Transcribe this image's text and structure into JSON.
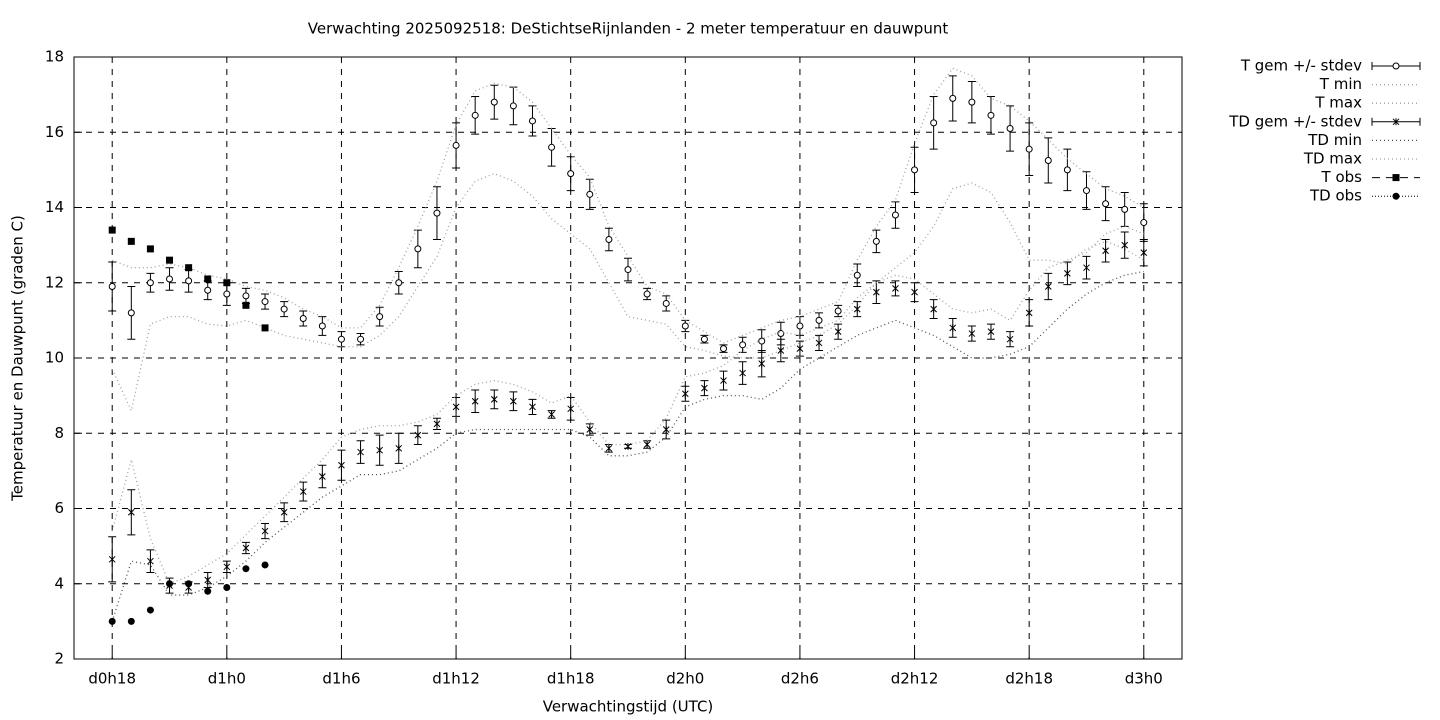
{
  "chart_data": {
    "type": "errorbar",
    "title": "Verwachting 2025092518: DeStichtseRijnlanden - 2 meter temperatuur en dauwpunt",
    "x_label": "Verwachtingstijd (UTC)",
    "y_label": "Temperatuur en Dauwpunt (graden C)",
    "xlim": [
      -2,
      56
    ],
    "ylim": [
      2,
      18
    ],
    "xticks": [
      {
        "value": 0,
        "label": "d0h18"
      },
      {
        "value": 6,
        "label": "d1h0"
      },
      {
        "value": 12,
        "label": "d1h6"
      },
      {
        "value": 18,
        "label": "d1h12"
      },
      {
        "value": 24,
        "label": "d1h18"
      },
      {
        "value": 30,
        "label": "d2h0"
      },
      {
        "value": 36,
        "label": "d2h6"
      },
      {
        "value": 42,
        "label": "d2h12"
      },
      {
        "value": 48,
        "label": "d2h18"
      },
      {
        "value": 54,
        "label": "d3h0"
      }
    ],
    "yticks": [
      2,
      4,
      6,
      8,
      10,
      12,
      14,
      16,
      18
    ],
    "grid": true,
    "legend": "outside-right",
    "x": [
      0,
      1,
      2,
      3,
      4,
      5,
      6,
      7,
      8,
      9,
      10,
      11,
      12,
      13,
      14,
      15,
      16,
      17,
      18,
      19,
      20,
      21,
      22,
      23,
      24,
      25,
      26,
      27,
      28,
      29,
      30,
      31,
      32,
      33,
      34,
      35,
      36,
      37,
      38,
      39,
      40,
      41,
      42,
      43,
      44,
      45,
      46,
      47,
      48,
      49,
      50,
      51,
      52,
      53,
      54
    ],
    "series": [
      {
        "name": "T gem +/- stdev",
        "style": "errorbar-circle",
        "color": "#000000",
        "values": [
          11.9,
          11.2,
          12.0,
          12.1,
          12.05,
          11.8,
          11.7,
          11.65,
          11.5,
          11.3,
          11.05,
          10.85,
          10.5,
          10.5,
          11.1,
          12.0,
          12.9,
          13.85,
          15.65,
          16.45,
          16.8,
          16.7,
          16.3,
          15.6,
          14.9,
          14.35,
          13.15,
          12.35,
          11.7,
          11.45,
          10.85,
          10.5,
          10.25,
          10.35,
          10.45,
          10.65,
          10.85,
          11.0,
          11.25,
          12.2,
          13.1,
          13.8,
          15.0,
          16.25,
          16.9,
          16.8,
          16.45,
          16.1,
          15.55,
          15.25,
          15.0,
          14.45,
          14.1,
          13.95,
          13.6
        ],
        "errors": [
          0.65,
          0.7,
          0.25,
          0.3,
          0.3,
          0.25,
          0.3,
          0.2,
          0.2,
          0.2,
          0.2,
          0.25,
          0.2,
          0.15,
          0.25,
          0.3,
          0.5,
          0.7,
          0.6,
          0.5,
          0.45,
          0.5,
          0.4,
          0.5,
          0.45,
          0.4,
          0.3,
          0.3,
          0.15,
          0.2,
          0.15,
          0.1,
          0.1,
          0.2,
          0.3,
          0.3,
          0.25,
          0.2,
          0.15,
          0.3,
          0.3,
          0.35,
          0.6,
          0.7,
          0.6,
          0.55,
          0.5,
          0.6,
          0.7,
          0.6,
          0.55,
          0.5,
          0.45,
          0.45,
          0.5
        ]
      },
      {
        "name": "T min",
        "style": "line-dotted",
        "color": "#a0a0a0",
        "values": [
          9.7,
          8.6,
          10.9,
          11.1,
          11.1,
          10.9,
          10.85,
          11.0,
          10.8,
          10.6,
          10.5,
          10.4,
          10.3,
          10.3,
          10.6,
          11.1,
          11.9,
          12.7,
          14.0,
          14.7,
          14.9,
          14.7,
          14.3,
          13.7,
          13.3,
          12.9,
          12.0,
          11.1,
          11.0,
          10.9,
          10.3,
          10.2,
          10.05,
          10.0,
          10.0,
          10.2,
          10.4,
          10.6,
          10.9,
          11.4,
          12.0,
          12.4,
          12.8,
          13.5,
          14.5,
          14.65,
          14.4,
          13.6,
          12.6,
          12.6,
          12.5,
          12.9,
          13.1,
          12.9,
          12.6
        ]
      },
      {
        "name": "T max",
        "style": "line-dotted",
        "color": "#a0a0a0",
        "values": [
          12.6,
          12.4,
          12.4,
          12.5,
          12.4,
          12.2,
          12.1,
          11.9,
          11.8,
          11.6,
          11.3,
          11.1,
          10.8,
          10.8,
          11.4,
          12.4,
          13.5,
          14.7,
          16.2,
          17.1,
          17.3,
          17.2,
          16.8,
          16.1,
          15.4,
          14.8,
          13.5,
          12.7,
          11.9,
          11.7,
          11.0,
          10.7,
          10.4,
          10.6,
          10.8,
          11.0,
          11.1,
          11.3,
          11.5,
          12.6,
          13.5,
          14.2,
          15.7,
          17.0,
          17.7,
          17.5,
          16.9,
          16.7,
          16.3,
          15.8,
          15.3,
          14.9,
          14.5,
          14.3,
          14.0
        ]
      },
      {
        "name": "TD gem +/- stdev",
        "style": "errorbar-star",
        "color": "#000000",
        "values": [
          4.65,
          5.9,
          4.6,
          3.95,
          3.9,
          4.1,
          4.45,
          4.95,
          5.4,
          5.9,
          6.45,
          6.85,
          7.15,
          7.5,
          7.55,
          7.6,
          7.95,
          8.25,
          8.7,
          8.85,
          8.9,
          8.85,
          8.7,
          8.5,
          8.65,
          8.1,
          7.6,
          7.65,
          7.7,
          8.1,
          9.05,
          9.2,
          9.4,
          9.6,
          9.85,
          10.2,
          10.25,
          10.4,
          10.7,
          11.3,
          11.75,
          11.85,
          11.75,
          11.3,
          10.8,
          10.65,
          10.7,
          10.5,
          11.2,
          11.9,
          12.25,
          12.4,
          12.85,
          13.0,
          12.8
        ],
        "errors": [
          0.6,
          0.6,
          0.3,
          0.2,
          0.15,
          0.2,
          0.15,
          0.15,
          0.2,
          0.25,
          0.25,
          0.3,
          0.4,
          0.3,
          0.4,
          0.4,
          0.25,
          0.15,
          0.25,
          0.3,
          0.25,
          0.25,
          0.2,
          0.1,
          0.3,
          0.15,
          0.1,
          0.05,
          0.1,
          0.25,
          0.2,
          0.2,
          0.25,
          0.3,
          0.35,
          0.3,
          0.2,
          0.2,
          0.2,
          0.2,
          0.3,
          0.2,
          0.25,
          0.25,
          0.25,
          0.2,
          0.2,
          0.2,
          0.35,
          0.35,
          0.3,
          0.3,
          0.3,
          0.35,
          0.35
        ]
      },
      {
        "name": "TD min",
        "style": "line-dotted",
        "color": "#505050",
        "values": [
          3.0,
          4.6,
          4.5,
          3.7,
          3.7,
          3.9,
          4.2,
          4.6,
          5.1,
          5.5,
          5.9,
          6.3,
          6.6,
          6.9,
          6.9,
          7.0,
          7.3,
          7.6,
          8.0,
          8.1,
          8.1,
          8.1,
          8.1,
          8.1,
          8.1,
          7.9,
          7.4,
          7.4,
          7.5,
          7.9,
          8.7,
          8.9,
          9.0,
          9.0,
          8.9,
          9.2,
          9.7,
          10.0,
          10.3,
          10.6,
          10.8,
          11.0,
          10.8,
          10.6,
          10.3,
          10.0,
          10.0,
          10.1,
          10.3,
          10.8,
          11.3,
          11.7,
          12.0,
          12.2,
          12.3
        ]
      },
      {
        "name": "TD max",
        "style": "line-dotted",
        "color": "#a0a0a0",
        "values": [
          5.4,
          7.3,
          5.2,
          4.0,
          4.2,
          4.5,
          4.8,
          5.3,
          5.8,
          6.3,
          6.8,
          7.3,
          7.9,
          8.1,
          8.2,
          8.2,
          8.3,
          8.5,
          9.0,
          9.3,
          9.4,
          9.3,
          9.1,
          8.8,
          9.0,
          8.3,
          7.7,
          7.7,
          7.8,
          8.4,
          9.5,
          9.6,
          9.8,
          10.2,
          10.5,
          10.7,
          10.6,
          10.8,
          11.0,
          11.6,
          12.0,
          12.2,
          12.1,
          11.7,
          11.3,
          11.2,
          11.3,
          11.0,
          11.8,
          12.4,
          12.6,
          12.8,
          13.3,
          13.5,
          13.3
        ]
      },
      {
        "name": "T obs",
        "style": "square",
        "color": "#000000",
        "values": [
          13.4,
          13.1,
          12.9,
          12.6,
          12.4,
          12.1,
          12.0,
          11.4,
          10.8,
          null,
          null,
          null,
          null,
          null,
          null,
          null,
          null,
          null,
          null,
          null,
          null,
          null,
          null,
          null,
          null,
          null,
          null,
          null,
          null,
          null,
          null,
          null,
          null,
          null,
          null,
          null,
          null,
          null,
          null,
          null,
          null,
          null,
          null,
          null,
          null,
          null,
          null,
          null,
          null,
          null,
          null,
          null,
          null,
          null,
          null
        ]
      },
      {
        "name": "TD obs",
        "style": "dot",
        "color": "#000000",
        "values": [
          3.0,
          3.0,
          3.3,
          4.0,
          4.0,
          3.8,
          3.9,
          4.4,
          4.5,
          null,
          null,
          null,
          null,
          null,
          null,
          null,
          null,
          null,
          null,
          null,
          null,
          null,
          null,
          null,
          null,
          null,
          null,
          null,
          null,
          null,
          null,
          null,
          null,
          null,
          null,
          null,
          null,
          null,
          null,
          null,
          null,
          null,
          null,
          null,
          null,
          null,
          null,
          null,
          null,
          null,
          null,
          null,
          null,
          null,
          null
        ]
      }
    ]
  }
}
